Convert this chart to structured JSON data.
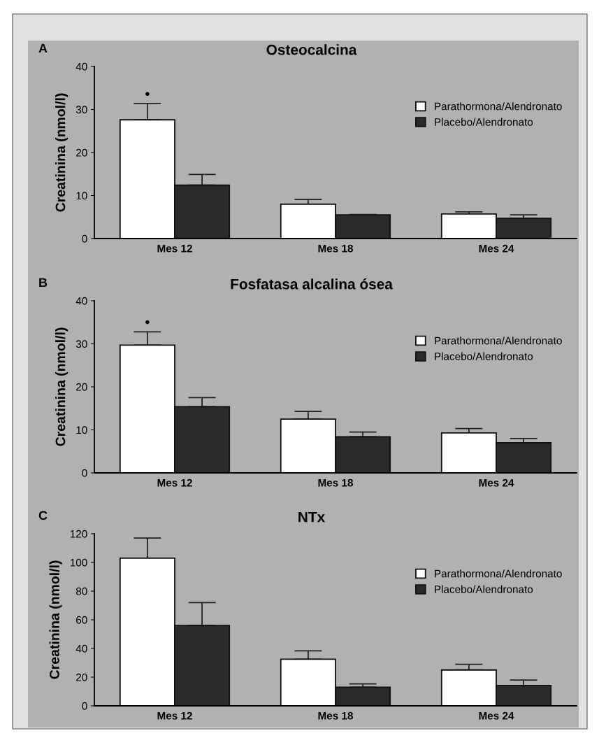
{
  "chart_data": [
    {
      "type": "bar",
      "title": "Osteocalcina",
      "ylabel": "Creatinina (nmol/l)",
      "categories": [
        "Mes 12",
        "Mes 18",
        "Mes 24"
      ],
      "ylim": [
        0,
        40
      ],
      "yticks": [
        0,
        10,
        20,
        30,
        40
      ],
      "legend": "top right",
      "grid": false,
      "annotations": [
        "A",
        "•"
      ],
      "series": [
        {
          "name": "Parathormona/Alendronato",
          "color": "#ffffff",
          "values": [
            27.6,
            8.0,
            5.7
          ],
          "errors": [
            [
              27.6,
              31.4
            ],
            [
              8.0,
              9.1
            ],
            [
              5.7,
              6.2
            ]
          ]
        },
        {
          "name": "Placebo/Alendronato",
          "color": "#2a2a2a",
          "values": [
            12.4,
            5.5,
            4.7
          ],
          "errors": [
            [
              12.4,
              14.9
            ],
            [
              5.5,
              5.6
            ],
            [
              4.7,
              5.5
            ]
          ]
        }
      ]
    },
    {
      "type": "bar",
      "title": "Fosfatasa alcalina ósea",
      "ylabel": "Creatinina (nmol/l)",
      "categories": [
        "Mes 12",
        "Mes 18",
        "Mes 24"
      ],
      "ylim": [
        0,
        40
      ],
      "yticks": [
        0,
        10,
        20,
        30,
        40
      ],
      "legend": "top right",
      "grid": false,
      "annotations": [
        "B",
        "•"
      ],
      "series": [
        {
          "name": "Parathormona/Alendronato",
          "color": "#ffffff",
          "values": [
            29.7,
            12.5,
            9.3
          ],
          "errors": [
            [
              29.7,
              32.8
            ],
            [
              12.5,
              14.3
            ],
            [
              9.3,
              10.3
            ]
          ]
        },
        {
          "name": "Placebo/Alendronato",
          "color": "#2a2a2a",
          "values": [
            15.4,
            8.4,
            7.0
          ],
          "errors": [
            [
              15.4,
              17.5
            ],
            [
              8.4,
              9.5
            ],
            [
              7.0,
              8.0
            ]
          ]
        }
      ]
    },
    {
      "type": "bar",
      "title": "NTx",
      "ylabel": "Creatinina (nmol/l)",
      "categories": [
        "Mes 12",
        "Mes 18",
        "Mes 24"
      ],
      "ylim": [
        0,
        120
      ],
      "yticks": [
        0,
        20,
        40,
        60,
        80,
        100,
        120
      ],
      "legend": "top right",
      "grid": false,
      "annotations": [
        "C"
      ],
      "series": [
        {
          "name": "Parathormona/Alendronato",
          "color": "#ffffff",
          "values": [
            103,
            32.5,
            25
          ],
          "errors": [
            [
              103,
              117
            ],
            [
              32.5,
              38.4
            ],
            [
              25,
              29
            ]
          ]
        },
        {
          "name": "Placebo/Alendronato",
          "color": "#2a2a2a",
          "values": [
            56,
            13,
            14.2
          ],
          "errors": [
            [
              56,
              72
            ],
            [
              13,
              15.3
            ],
            [
              14.2,
              18
            ]
          ]
        }
      ]
    }
  ]
}
